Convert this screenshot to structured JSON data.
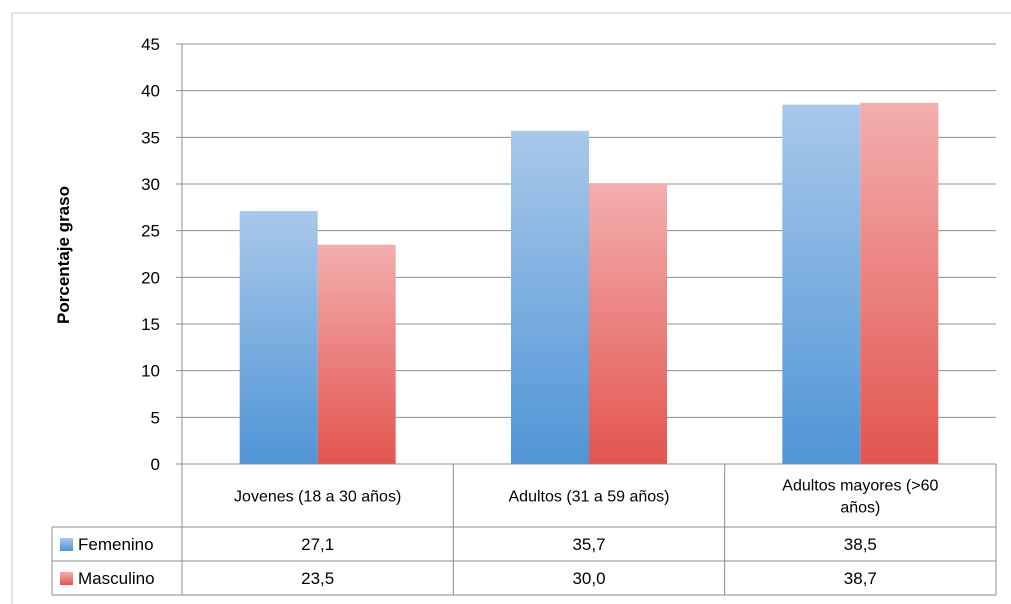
{
  "chart_data": {
    "type": "bar",
    "ylabel": "Porcentaje graso",
    "xlabel": "",
    "ylim": [
      0,
      45
    ],
    "yticks": [
      0,
      5,
      10,
      15,
      20,
      25,
      30,
      35,
      40,
      45
    ],
    "grid": true,
    "legend": "data-table",
    "categories": [
      "Jovenes (18 a 30 años)",
      "Adultos (31 a 59 años)",
      "Adultos mayores (>60 años)"
    ],
    "category_lines": [
      [
        "Jovenes (18 a 30 años)"
      ],
      [
        "Adultos (31 a 59 años)"
      ],
      [
        "Adultos mayores (>60",
        "años)"
      ]
    ],
    "series": [
      {
        "name": "Femenino",
        "values": [
          27.1,
          35.7,
          38.5
        ],
        "labels": [
          "27,1",
          "35,7",
          "38,5"
        ],
        "color_top": "#a9c8ea",
        "color_bottom": "#4f95d6"
      },
      {
        "name": "Masculino",
        "values": [
          23.5,
          30.0,
          38.7
        ],
        "labels": [
          "23,5",
          "30,0",
          "38,7"
        ],
        "color_top": "#f2aeae",
        "color_bottom": "#e3554f"
      }
    ]
  }
}
